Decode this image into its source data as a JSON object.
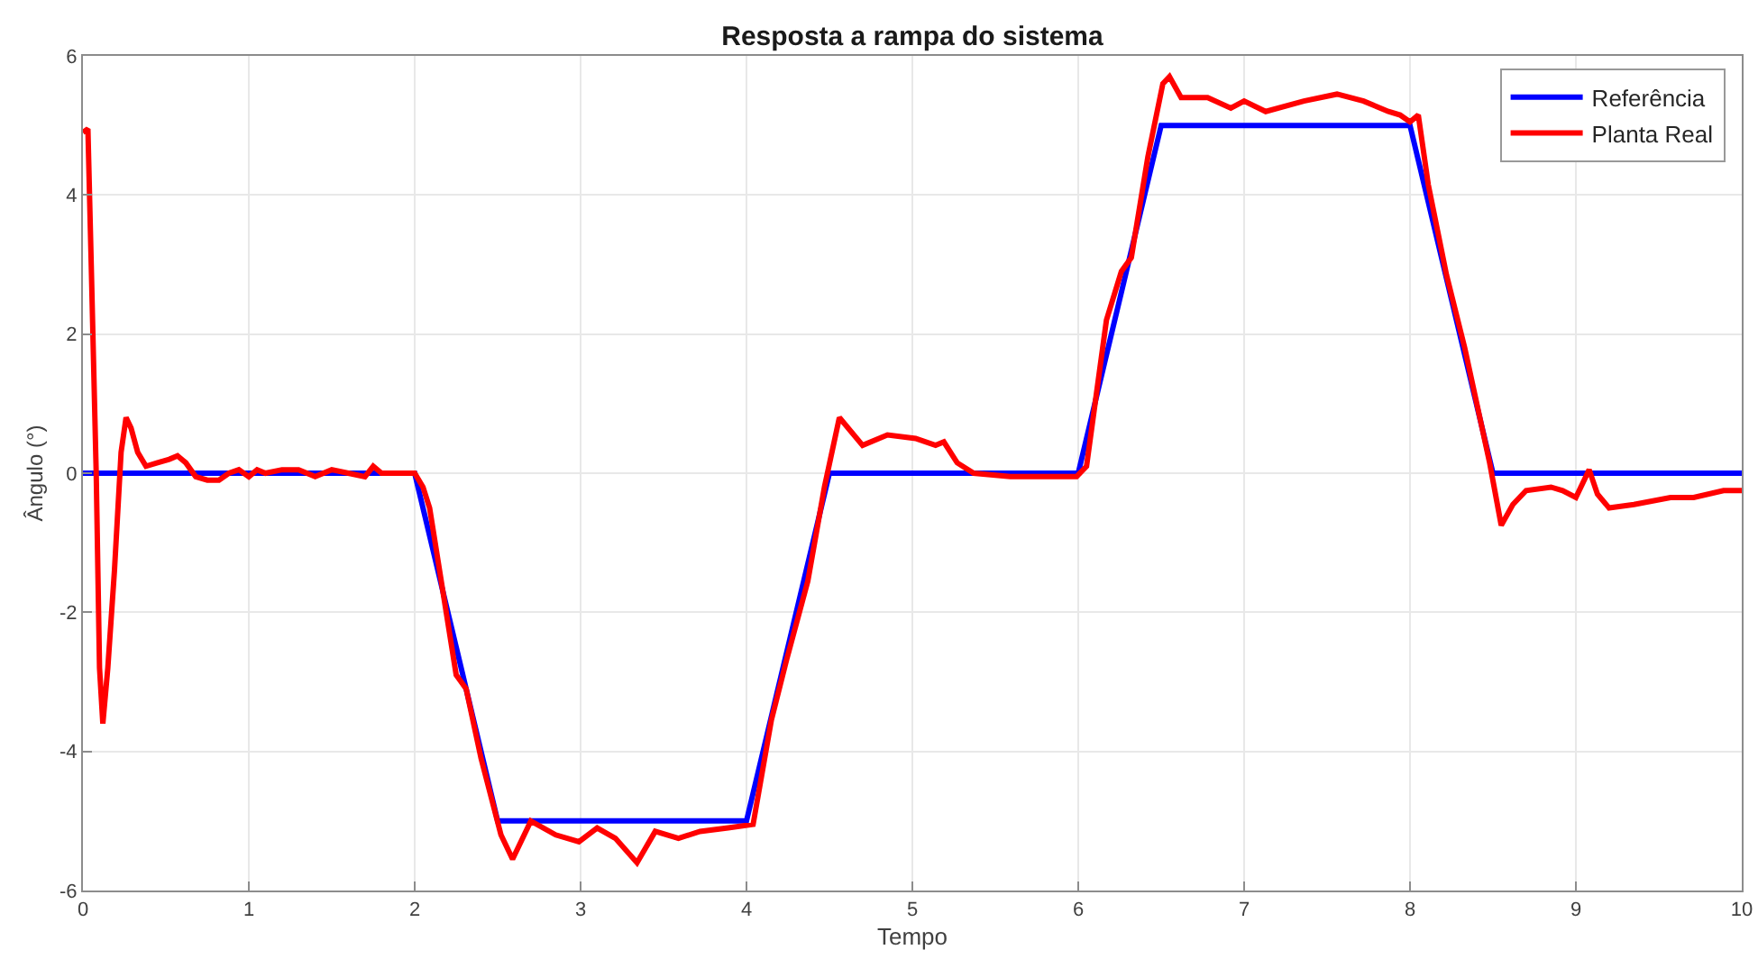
{
  "chart_data": {
    "type": "line",
    "title": "Resposta a rampa do sistema",
    "xlabel": "Tempo",
    "ylabel": "Ângulo (°)",
    "xlim": [
      0,
      10
    ],
    "xticks": [
      0,
      1,
      2,
      3,
      4,
      5,
      6,
      7,
      8,
      9,
      10
    ],
    "ylim": [
      -6,
      6
    ],
    "yticks": [
      -6,
      -4,
      -2,
      0,
      2,
      4,
      6
    ],
    "grid": true,
    "legend": "top right",
    "series": [
      {
        "name": "Referência",
        "color": "#0000ff",
        "x": [
          0,
          2,
          2.5,
          4,
          4.5,
          6,
          6.5,
          8,
          8.5,
          10
        ],
        "values": [
          0,
          0,
          -5,
          -5,
          0,
          0,
          5,
          5,
          0,
          0
        ]
      },
      {
        "name": "Planta Real",
        "color": "#ff0000",
        "x": [
          0,
          0.03,
          0.05,
          0.08,
          0.1,
          0.12,
          0.15,
          0.19,
          0.23,
          0.26,
          0.29,
          0.33,
          0.38,
          0.45,
          0.52,
          0.57,
          0.62,
          0.68,
          0.75,
          0.82,
          0.88,
          0.94,
          1.0,
          1.05,
          1.1,
          1.2,
          1.3,
          1.4,
          1.5,
          1.6,
          1.7,
          1.75,
          1.8,
          1.9,
          2.0,
          2.05,
          2.09,
          2.17,
          2.25,
          2.31,
          2.4,
          2.52,
          2.59,
          2.7,
          2.85,
          2.99,
          3.1,
          3.21,
          3.34,
          3.45,
          3.59,
          3.72,
          3.89,
          4.04,
          4.15,
          4.24,
          4.37,
          4.47,
          4.56,
          4.7,
          4.85,
          5.02,
          5.14,
          5.19,
          5.27,
          5.37,
          5.59,
          5.81,
          5.99,
          6.05,
          6.17,
          6.26,
          6.32,
          6.42,
          6.51,
          6.55,
          6.62,
          6.78,
          6.92,
          7.0,
          7.13,
          7.36,
          7.56,
          7.72,
          7.87,
          7.94,
          8.0,
          8.05,
          8.11,
          8.22,
          8.33,
          8.48,
          8.55,
          8.62,
          8.7,
          8.85,
          8.92,
          9.0,
          9.08,
          9.13,
          9.2,
          9.35,
          9.57,
          9.71,
          9.89,
          10.0
        ],
        "values": [
          4.9,
          4.95,
          3.0,
          0.0,
          -2.8,
          -3.6,
          -2.8,
          -1.4,
          0.3,
          0.8,
          0.65,
          0.3,
          0.1,
          0.15,
          0.2,
          0.25,
          0.15,
          -0.05,
          -0.1,
          -0.1,
          0.0,
          0.05,
          -0.05,
          0.05,
          0.0,
          0.05,
          0.05,
          -0.05,
          0.05,
          0.0,
          -0.05,
          0.1,
          0.0,
          0.0,
          0.0,
          -0.2,
          -0.5,
          -1.7,
          -2.9,
          -3.1,
          -4.1,
          -5.2,
          -5.55,
          -5.0,
          -5.2,
          -5.3,
          -5.1,
          -5.25,
          -5.6,
          -5.15,
          -5.25,
          -5.15,
          -5.1,
          -5.05,
          -3.55,
          -2.7,
          -1.55,
          -0.2,
          0.8,
          0.4,
          0.55,
          0.5,
          0.4,
          0.45,
          0.15,
          0.0,
          -0.05,
          -0.05,
          -0.05,
          0.1,
          2.2,
          2.9,
          3.1,
          4.55,
          5.6,
          5.7,
          5.4,
          5.4,
          5.25,
          5.35,
          5.2,
          5.35,
          5.45,
          5.35,
          5.2,
          5.15,
          5.05,
          5.15,
          4.15,
          2.85,
          1.8,
          0.15,
          -0.75,
          -0.45,
          -0.25,
          -0.2,
          -0.25,
          -0.35,
          0.05,
          -0.3,
          -0.5,
          -0.45,
          -0.35,
          -0.35,
          -0.25,
          -0.25
        ]
      }
    ]
  }
}
